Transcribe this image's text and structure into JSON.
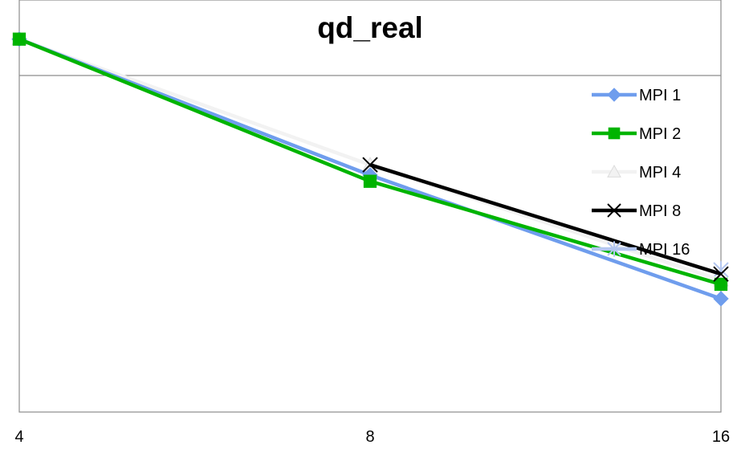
{
  "chart_data": {
    "type": "line",
    "title": "qd_real",
    "xlabel": "",
    "ylabel": "",
    "x_scale": "log2",
    "x": [
      4,
      8,
      16
    ],
    "x_tick_labels": [
      "4",
      "8",
      "16"
    ],
    "ylim": [
      0,
      1
    ],
    "y_axis_labels_shown": false,
    "grid": {
      "horizontal": true,
      "vertical": false
    },
    "legend_position": "right",
    "series": [
      {
        "name": "MPI 1",
        "color": "#6f9ded",
        "marker": "diamond",
        "values": [
          0.905,
          0.575,
          0.275
        ]
      },
      {
        "name": "MPI 2",
        "color": "#00b400",
        "marker": "square",
        "values": [
          0.905,
          0.56,
          0.31
        ]
      },
      {
        "name": "MPI 4",
        "color": "#f2f2f2",
        "marker": "triangle",
        "values": [
          0.905,
          0.6,
          0.32
        ]
      },
      {
        "name": "MPI 8",
        "color": "#000000",
        "marker": "x",
        "values": [
          null,
          0.6,
          0.335
        ]
      },
      {
        "name": "MPI 16",
        "color": "#b4c7f0",
        "marker": "star",
        "values": [
          null,
          null,
          0.345
        ]
      }
    ]
  }
}
